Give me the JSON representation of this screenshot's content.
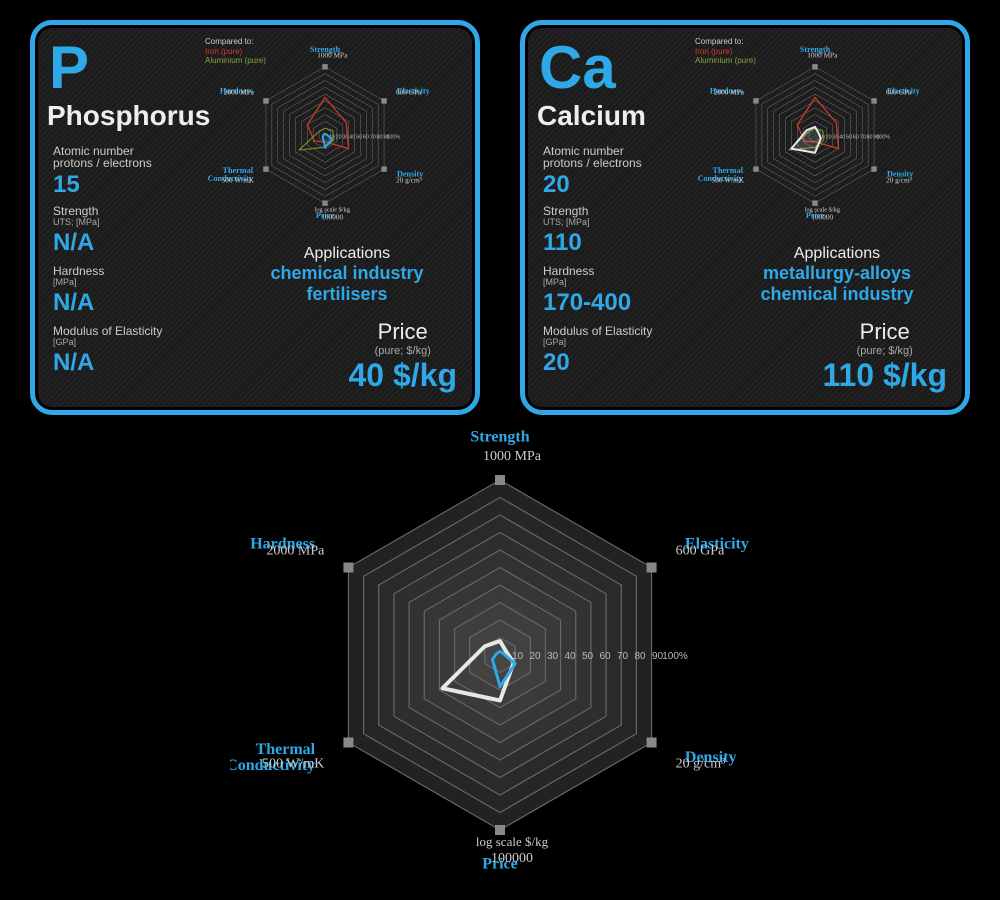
{
  "colors": {
    "accent_blue": "#2ea8e6",
    "border": "#2ea8e6",
    "text_white": "#eeeeee",
    "text_grey": "#cccccc",
    "radar_grid": "#6a6a6a",
    "radar_fill": "#3a3a3a",
    "iron_line": "#d03a2a",
    "aluminium_line": "#6a8a2a",
    "element_P_line": "#2ea8e6",
    "element_Ca_line": "#e8e8e8",
    "big_radar_line": "#e8e8e8",
    "big_radar_accent": "#2ea8e6"
  },
  "radar": {
    "axes": [
      "Strength",
      "Elasticity",
      "Density",
      "Price",
      "Thermal Conductivity",
      "Hardness"
    ],
    "axis_max_labels": [
      "1000 MPa",
      "600 GPa",
      "20 g/cm³",
      "100000",
      "500 W/mK",
      "2000 MPa"
    ],
    "axis_sub_labels": [
      "",
      "",
      "",
      "log scale $/kg",
      "",
      ""
    ],
    "rings_pct": [
      10,
      20,
      30,
      40,
      50,
      60,
      70,
      80,
      90,
      100
    ],
    "ring_labels": [
      "10",
      "20",
      "30",
      "40",
      "50",
      "60",
      "70",
      "80",
      "90",
      "100%"
    ]
  },
  "elements": [
    {
      "symbol": "P",
      "name": "Phosphorus",
      "atomic_number": "15",
      "strength": "N/A",
      "hardness": "N/A",
      "modulus": "N/A",
      "applications": "chemical industry\nfertilisers",
      "price": "40 $/kg",
      "radar_values_pct": {
        "Strength": 2,
        "Elasticity": 2,
        "Density": 12,
        "Price": 18,
        "Thermal Conductivity": 4,
        "Hardness": 2
      }
    },
    {
      "symbol": "Ca",
      "name": "Calcium",
      "atomic_number": "20",
      "strength": "110",
      "hardness": "170-400",
      "modulus": "20",
      "applications": "metallurgy-alloys\nchemical industry",
      "price": "110 $/kg",
      "radar_values_pct": {
        "Strength": 12,
        "Elasticity": 6,
        "Density": 10,
        "Price": 26,
        "Thermal Conductivity": 40,
        "Hardness": 14
      }
    }
  ],
  "reference_series": {
    "iron": {
      "label": "Iron (pure)",
      "values_pct": {
        "Strength": 55,
        "Elasticity": 36,
        "Density": 40,
        "Price": 10,
        "Thermal Conductivity": 18,
        "Hardness": 30
      }
    },
    "aluminium": {
      "label": "Aluminium (pure)",
      "values_pct": {
        "Strength": 10,
        "Elasticity": 13,
        "Density": 15,
        "Price": 18,
        "Thermal Conductivity": 44,
        "Hardness": 10
      }
    }
  },
  "big_radar": {
    "series_pct": {
      "Strength": 8,
      "Elasticity": 4,
      "Density": 9,
      "Price": 26,
      "Thermal Conductivity": 38,
      "Hardness": 10
    },
    "accent_pct": {
      "Strength": 2,
      "Elasticity": 2,
      "Density": 10,
      "Price": 18,
      "Thermal Conductivity": 5,
      "Hardness": 2
    }
  },
  "labels": {
    "atomic": "Atomic number\nprotons / electrons",
    "strength": "Strength",
    "strength_sub": "UTS; [MPa]",
    "hardness": "Hardness",
    "hardness_sub": "[MPa]",
    "modulus": "Modulus of Elasticity",
    "modulus_sub": "[GPa]",
    "applications": "Applications",
    "price": "Price",
    "price_sub": "(pure; $/kg)",
    "compared_to": "Compared to:",
    "thermal": "Thermal\nConductivity"
  }
}
